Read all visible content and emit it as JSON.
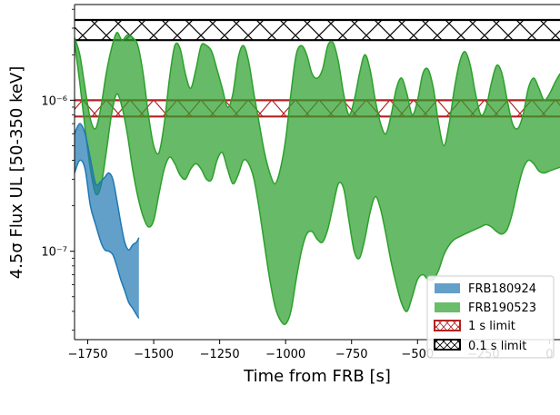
{
  "chart_data": {
    "type": "area",
    "xlabel": "Time from FRB [s]",
    "ylabel": "4.5σ Flux UL [50-350 keV]",
    "xlim": [
      -1800,
      40
    ],
    "ylim": [
      2.6e-08,
      4.3e-06
    ],
    "yscale": "log",
    "x_ticks": [
      -1750,
      -1500,
      -1250,
      -1000,
      -750,
      -500,
      -250,
      0
    ],
    "x_tick_labels": [
      "−1750",
      "−1500",
      "−1250",
      "−1000",
      "−750",
      "−500",
      "−250",
      "0"
    ],
    "y_ticks": [
      1e-07,
      1e-06
    ],
    "y_tick_labels": [
      "10⁻⁷",
      "10⁻⁶"
    ],
    "legend_position": "lower-right",
    "colors": {
      "frb180924": "#1f77b4",
      "frb190523": "#2ca02c",
      "one_s_limit": "#b22222",
      "pt1_s_limit": "#000000"
    },
    "series": [
      {
        "name": "FRB180924",
        "kind": "band",
        "x": [
          -1800,
          -1780,
          -1760,
          -1740,
          -1720,
          -1700,
          -1685,
          -1670,
          -1655,
          -1640,
          -1625,
          -1610,
          -1595,
          -1580,
          -1565,
          -1556
        ],
        "upper": [
          6e-07,
          7e-07,
          6e-07,
          4.1e-07,
          2.8e-07,
          2.9e-07,
          3.1e-07,
          3.3e-07,
          3e-07,
          2.2e-07,
          1.55e-07,
          1.15e-07,
          1.02e-07,
          1.1e-07,
          1.15e-07,
          1.23e-07
        ],
        "lower": [
          3.3e-07,
          4e-07,
          3.5e-07,
          2e-07,
          1.5e-07,
          1.15e-07,
          1.02e-07,
          1e-07,
          9.5e-08,
          8e-08,
          6.5e-08,
          5.5e-08,
          4.6e-08,
          4.2e-08,
          3.8e-08,
          3.6e-08
        ]
      },
      {
        "name": "FRB190523",
        "kind": "band",
        "x": [
          -1800,
          -1780,
          -1760,
          -1740,
          -1720,
          -1700,
          -1680,
          -1660,
          -1640,
          -1620,
          -1600,
          -1580,
          -1560,
          -1540,
          -1520,
          -1500,
          -1480,
          -1460,
          -1440,
          -1420,
          -1400,
          -1380,
          -1360,
          -1340,
          -1320,
          -1300,
          -1280,
          -1260,
          -1240,
          -1220,
          -1200,
          -1180,
          -1160,
          -1140,
          -1120,
          -1100,
          -1080,
          -1060,
          -1040,
          -1020,
          -1000,
          -980,
          -960,
          -940,
          -920,
          -900,
          -880,
          -860,
          -840,
          -820,
          -800,
          -780,
          -760,
          -740,
          -720,
          -700,
          -680,
          -660,
          -640,
          -620,
          -600,
          -580,
          -560,
          -540,
          -520,
          -500,
          -480,
          -460,
          -440,
          -420,
          -400,
          -380,
          -360,
          -340,
          -320,
          -300,
          -280,
          -260,
          -240,
          -220,
          -200,
          -180,
          -160,
          -140,
          -120,
          -100,
          -80,
          -60,
          -40,
          -20,
          0,
          20,
          40
        ],
        "upper": [
          2.6e-06,
          2e-06,
          1.2e-06,
          7.5e-07,
          6.5e-07,
          9e-07,
          1.5e-06,
          2.2e-06,
          2.8e-06,
          2.5e-06,
          2.7e-06,
          2.6e-06,
          2.3e-06,
          1.5e-06,
          8e-07,
          5e-07,
          4.5e-07,
          7e-07,
          1.4e-06,
          2.3e-06,
          2.2e-06,
          1.5e-06,
          1.2e-06,
          1.6e-06,
          2.3e-06,
          2.3e-06,
          2.1e-06,
          1.6e-06,
          1.2e-06,
          9e-07,
          1.1e-06,
          1.9e-06,
          2.3e-06,
          1.8e-06,
          1.1e-06,
          7e-07,
          4.5e-07,
          3.3e-07,
          2.8e-07,
          3.5e-07,
          5.5e-07,
          1.1e-06,
          2e-06,
          2.3e-06,
          2e-06,
          1.5e-06,
          1.4e-06,
          1.6e-06,
          2.3e-06,
          2.4e-06,
          1.8e-06,
          1.1e-06,
          8e-07,
          1e-06,
          1.5e-06,
          2e-06,
          1.6e-06,
          1e-06,
          7e-07,
          6e-07,
          8e-07,
          1.2e-06,
          1.4e-06,
          1.1e-06,
          8e-07,
          1e-06,
          1.5e-06,
          1.6e-06,
          1.2e-06,
          7e-07,
          5e-07,
          7e-07,
          1.2e-06,
          1.8e-06,
          2.1e-06,
          1.7e-06,
          1.1e-06,
          8e-07,
          9e-07,
          1.3e-06,
          1.7e-06,
          1.5e-06,
          1e-06,
          7e-07,
          6.5e-07,
          8e-07,
          1.2e-06,
          1.4e-06,
          1.2e-06,
          1e-06,
          1.1e-06,
          1.3e-06,
          1.5e-06
        ],
        "lower": [
          2.4e-06,
          1.3e-06,
          6.5e-07,
          3.5e-07,
          2.4e-07,
          2.7e-07,
          4.5e-07,
          8e-07,
          1.1e-06,
          9e-07,
          6e-07,
          3.5e-07,
          2.3e-07,
          1.7e-07,
          1.45e-07,
          1.6e-07,
          2.4e-07,
          3.5e-07,
          4.2e-07,
          3.8e-07,
          3.2e-07,
          3e-07,
          3.5e-07,
          3.8e-07,
          3.5e-07,
          3e-07,
          3e-07,
          4e-07,
          4.5e-07,
          3.5e-07,
          2.8e-07,
          3.2e-07,
          4e-07,
          3.8e-07,
          3e-07,
          1.9e-07,
          1.1e-07,
          6.5e-08,
          4.3e-08,
          3.5e-08,
          3.3e-08,
          4e-08,
          6.5e-08,
          1e-07,
          1.3e-07,
          1.35e-07,
          1.2e-07,
          1.15e-07,
          1.4e-07,
          2e-07,
          2.8e-07,
          2.6e-07,
          1.6e-07,
          1e-07,
          9e-08,
          1.2e-07,
          1.8e-07,
          2.3e-07,
          1.9e-07,
          1.3e-07,
          8.5e-08,
          6e-08,
          4.5e-08,
          4e-08,
          5e-08,
          6.5e-08,
          7e-08,
          6.5e-08,
          6.5e-08,
          7.5e-08,
          9.5e-08,
          1.1e-07,
          1.2e-07,
          1.25e-07,
          1.3e-07,
          1.35e-07,
          1.4e-07,
          1.45e-07,
          1.5e-07,
          1.45e-07,
          1.35e-07,
          1.3e-07,
          1.4e-07,
          1.8e-07,
          2.6e-07,
          3.5e-07,
          4e-07,
          3.8e-07,
          3.4e-07,
          3.3e-07,
          3.4e-07,
          3.5e-07,
          3.6e-07
        ]
      },
      {
        "name": "1 s limit",
        "kind": "hatched-band",
        "x": [
          -1800,
          40
        ],
        "upper": 1e-06,
        "lower": 7.8e-07
      },
      {
        "name": "0.1 s limit",
        "kind": "hatched-band",
        "x": [
          -1800,
          40
        ],
        "upper": 3.4e-06,
        "lower": 2.5e-06
      }
    ]
  }
}
